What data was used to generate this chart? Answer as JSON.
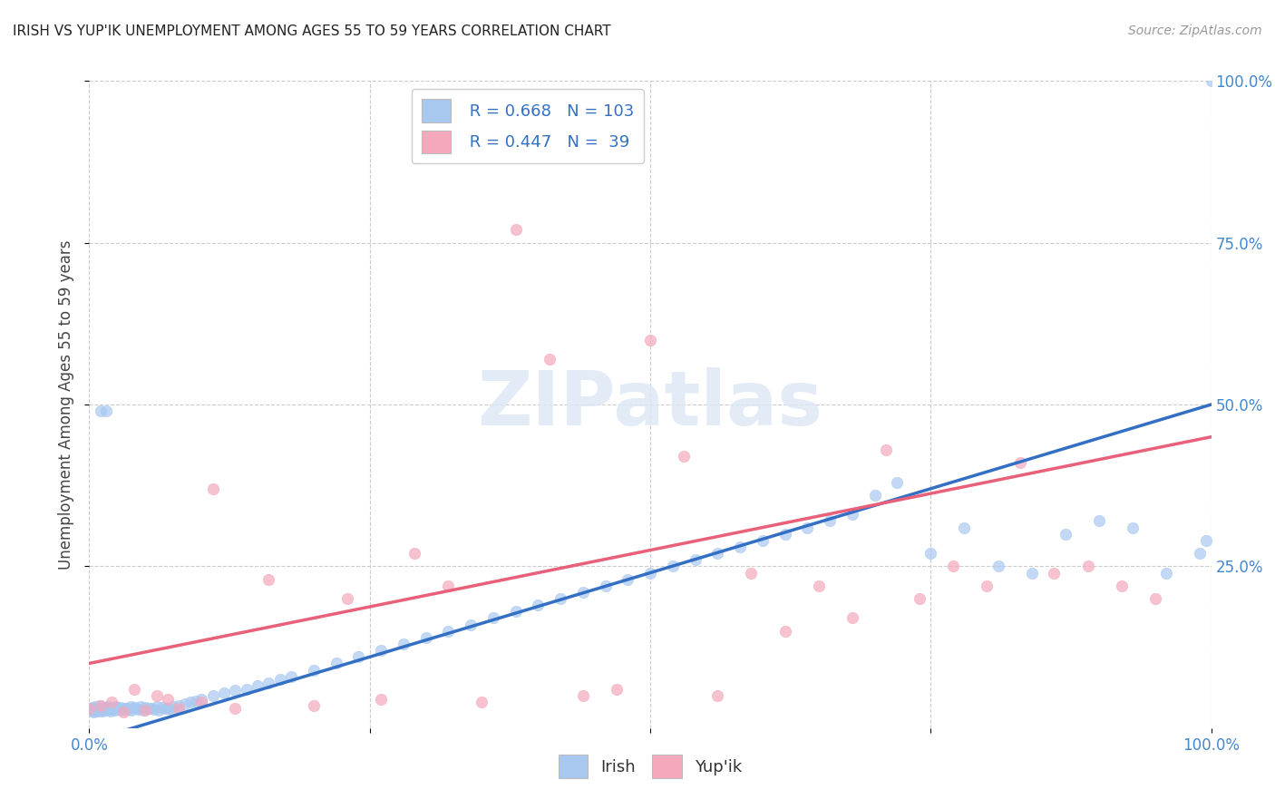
{
  "title": "IRISH VS YUP'IK UNEMPLOYMENT AMONG AGES 55 TO 59 YEARS CORRELATION CHART",
  "source": "Source: ZipAtlas.com",
  "ylabel": "Unemployment Among Ages 55 to 59 years",
  "xlim": [
    0.0,
    1.0
  ],
  "ylim": [
    0.0,
    1.0
  ],
  "irish_color": "#A8C8F0",
  "yupik_color": "#F5A8BC",
  "irish_line_color": "#3370C4",
  "yupik_line_color": "#E8607A",
  "irish_R": 0.668,
  "irish_N": 103,
  "yupik_R": 0.447,
  "yupik_N": 39,
  "background_color": "#FFFFFF",
  "grid_color": "#CCCCCC",
  "irish_scatter_x": [
    0.0,
    0.002,
    0.003,
    0.004,
    0.005,
    0.005,
    0.006,
    0.007,
    0.008,
    0.009,
    0.01,
    0.011,
    0.012,
    0.013,
    0.014,
    0.015,
    0.016,
    0.017,
    0.018,
    0.019,
    0.02,
    0.021,
    0.022,
    0.023,
    0.024,
    0.025,
    0.027,
    0.028,
    0.03,
    0.032,
    0.033,
    0.035,
    0.037,
    0.038,
    0.04,
    0.042,
    0.044,
    0.046,
    0.048,
    0.05,
    0.053,
    0.055,
    0.058,
    0.06,
    0.062,
    0.065,
    0.068,
    0.07,
    0.073,
    0.075,
    0.08,
    0.085,
    0.09,
    0.095,
    0.1,
    0.11,
    0.12,
    0.13,
    0.14,
    0.15,
    0.16,
    0.17,
    0.18,
    0.2,
    0.22,
    0.24,
    0.26,
    0.28,
    0.3,
    0.32,
    0.34,
    0.36,
    0.38,
    0.4,
    0.42,
    0.44,
    0.46,
    0.48,
    0.5,
    0.52,
    0.54,
    0.56,
    0.58,
    0.6,
    0.62,
    0.64,
    0.66,
    0.68,
    0.7,
    0.72,
    0.75,
    0.78,
    0.81,
    0.84,
    0.87,
    0.9,
    0.93,
    0.96,
    0.99,
    0.995,
    0.01,
    0.015,
    1.0
  ],
  "irish_scatter_y": [
    0.03,
    0.028,
    0.032,
    0.025,
    0.033,
    0.027,
    0.029,
    0.031,
    0.026,
    0.035,
    0.028,
    0.03,
    0.027,
    0.032,
    0.029,
    0.031,
    0.028,
    0.033,
    0.03,
    0.027,
    0.032,
    0.029,
    0.031,
    0.028,
    0.033,
    0.03,
    0.029,
    0.032,
    0.028,
    0.031,
    0.03,
    0.029,
    0.033,
    0.028,
    0.032,
    0.03,
    0.029,
    0.033,
    0.028,
    0.032,
    0.031,
    0.03,
    0.029,
    0.033,
    0.028,
    0.032,
    0.031,
    0.03,
    0.029,
    0.033,
    0.035,
    0.038,
    0.04,
    0.042,
    0.045,
    0.05,
    0.055,
    0.058,
    0.06,
    0.065,
    0.07,
    0.075,
    0.08,
    0.09,
    0.1,
    0.11,
    0.12,
    0.13,
    0.14,
    0.15,
    0.16,
    0.17,
    0.18,
    0.19,
    0.2,
    0.21,
    0.22,
    0.23,
    0.24,
    0.25,
    0.26,
    0.27,
    0.28,
    0.29,
    0.3,
    0.31,
    0.32,
    0.33,
    0.36,
    0.38,
    0.27,
    0.31,
    0.25,
    0.24,
    0.3,
    0.32,
    0.31,
    0.24,
    0.27,
    0.29,
    0.49,
    0.49,
    1.0
  ],
  "yupik_scatter_x": [
    0.0,
    0.01,
    0.02,
    0.03,
    0.04,
    0.05,
    0.06,
    0.07,
    0.08,
    0.1,
    0.11,
    0.13,
    0.16,
    0.2,
    0.23,
    0.26,
    0.29,
    0.32,
    0.35,
    0.38,
    0.41,
    0.44,
    0.47,
    0.5,
    0.53,
    0.56,
    0.59,
    0.62,
    0.65,
    0.68,
    0.71,
    0.74,
    0.77,
    0.8,
    0.83,
    0.86,
    0.89,
    0.92,
    0.95
  ],
  "yupik_scatter_y": [
    0.03,
    0.035,
    0.04,
    0.025,
    0.06,
    0.028,
    0.05,
    0.045,
    0.03,
    0.04,
    0.37,
    0.03,
    0.23,
    0.035,
    0.2,
    0.045,
    0.27,
    0.22,
    0.04,
    0.77,
    0.57,
    0.05,
    0.06,
    0.6,
    0.42,
    0.05,
    0.24,
    0.15,
    0.22,
    0.17,
    0.43,
    0.2,
    0.25,
    0.22,
    0.41,
    0.24,
    0.25,
    0.22,
    0.2
  ],
  "irish_line_x": [
    0.0,
    1.0
  ],
  "irish_line_y": [
    -0.02,
    0.5
  ],
  "yupik_line_x": [
    0.0,
    1.0
  ],
  "yupik_line_y": [
    0.1,
    0.45
  ]
}
